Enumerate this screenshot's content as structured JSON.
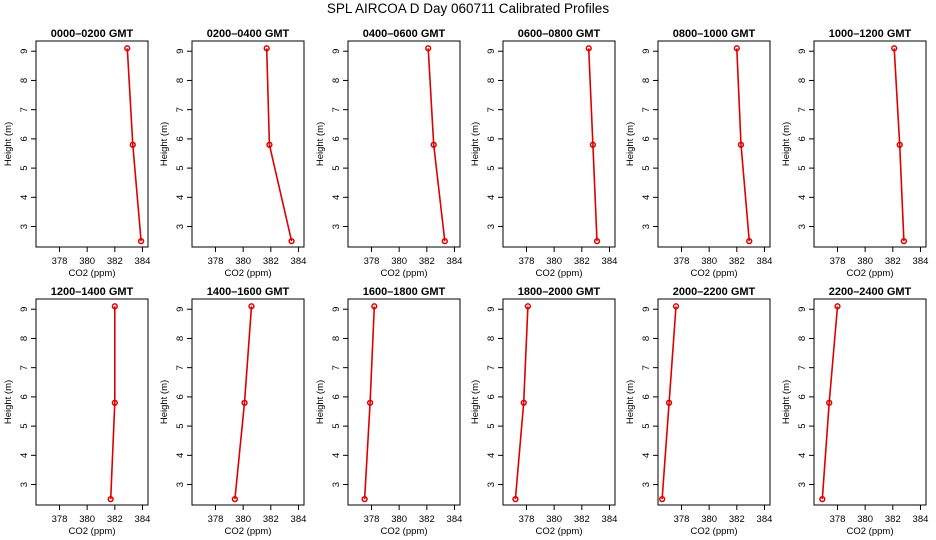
{
  "title": "SPL AIRCOA D  Day 060711  Calibrated Profiles",
  "colors": {
    "series": "#dd0000",
    "axis": "#000000"
  },
  "chart_data": {
    "type": "line",
    "xlabel": "CO2 (ppm)",
    "ylabel": "Height (m)",
    "xticks": [
      378,
      380,
      382,
      384
    ],
    "yticks": [
      3,
      4,
      5,
      6,
      7,
      8,
      9
    ],
    "xlim": [
      376.3,
      384.4
    ],
    "ylim": [
      2.3,
      9.35
    ],
    "heights": [
      2.5,
      5.8,
      9.1
    ],
    "panels": [
      {
        "title": "0000–0200 GMT",
        "co2": [
          383.9,
          383.3,
          382.9
        ]
      },
      {
        "title": "0200–0400 GMT",
        "co2": [
          383.5,
          381.9,
          381.7
        ]
      },
      {
        "title": "0400–0600 GMT",
        "co2": [
          383.3,
          382.5,
          382.1
        ]
      },
      {
        "title": "0600–0800 GMT",
        "co2": [
          383.1,
          382.8,
          382.5
        ]
      },
      {
        "title": "0800–1000 GMT",
        "co2": [
          382.9,
          382.3,
          382.0
        ]
      },
      {
        "title": "1000–1200 GMT",
        "co2": [
          382.8,
          382.5,
          382.1
        ]
      },
      {
        "title": "1200–1400 GMT",
        "co2": [
          381.7,
          382.0,
          382.0
        ]
      },
      {
        "title": "1400–1600 GMT",
        "co2": [
          379.4,
          380.1,
          380.6
        ]
      },
      {
        "title": "1600–1800 GMT",
        "co2": [
          377.5,
          377.9,
          378.2
        ]
      },
      {
        "title": "1800–2000 GMT",
        "co2": [
          377.2,
          377.8,
          378.1
        ]
      },
      {
        "title": "2000–2200 GMT",
        "co2": [
          376.6,
          377.1,
          377.6
        ]
      },
      {
        "title": "2200–2400 GMT",
        "co2": [
          376.9,
          377.4,
          378.0
        ]
      }
    ]
  }
}
